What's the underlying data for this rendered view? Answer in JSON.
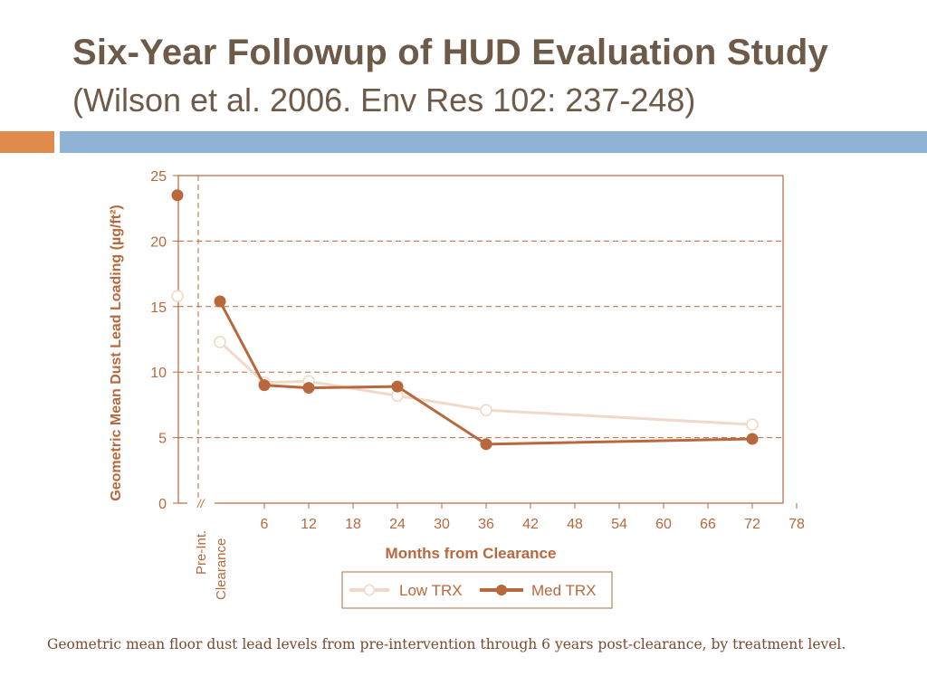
{
  "slide": {
    "title": "Six-Year Followup of HUD Evaluation Study",
    "subtitle": "(Wilson et al. 2006. Env Res 102: 237-248)",
    "caption": "Geometric mean floor dust lead levels from pre-intervention through 6 years post-clearance, by treatment level.",
    "colors": {
      "title": "#6e5a48",
      "accent_orange": "#e08a4e",
      "accent_blue": "#8fb3d4"
    }
  },
  "chart_data": {
    "type": "line",
    "xlabel": "Months from Clearance",
    "ylabel": "Geometric Mean Dust Lead Loading (µg/ft²)",
    "ylim": [
      0,
      25
    ],
    "xlim": [
      0,
      78
    ],
    "x_ticks": [
      "6",
      "12",
      "18",
      "24",
      "30",
      "36",
      "42",
      "48",
      "54",
      "60",
      "66",
      "72",
      "78"
    ],
    "y_ticks": [
      "0",
      "5",
      "10",
      "15",
      "20",
      "25"
    ],
    "pre_label": "Pre-Int.",
    "clearance_label": "Clearance",
    "break_mark": "//",
    "grid": "dashed horizontal",
    "legend_position": "bottom-center",
    "colors": {
      "low": "#f0d9c8",
      "med": "#b8683c",
      "axis": "#b8683c"
    },
    "series": [
      {
        "name": "Low TRX",
        "pre": 15.8,
        "clearance": 12.3,
        "x": [
          6,
          12,
          24,
          36,
          72
        ],
        "y": [
          9.2,
          9.3,
          8.2,
          7.1,
          6.0
        ]
      },
      {
        "name": "Med TRX",
        "pre": 23.5,
        "clearance": 15.4,
        "x": [
          6,
          12,
          24,
          36,
          72
        ],
        "y": [
          9.0,
          8.8,
          8.9,
          4.5,
          4.9
        ]
      }
    ]
  }
}
